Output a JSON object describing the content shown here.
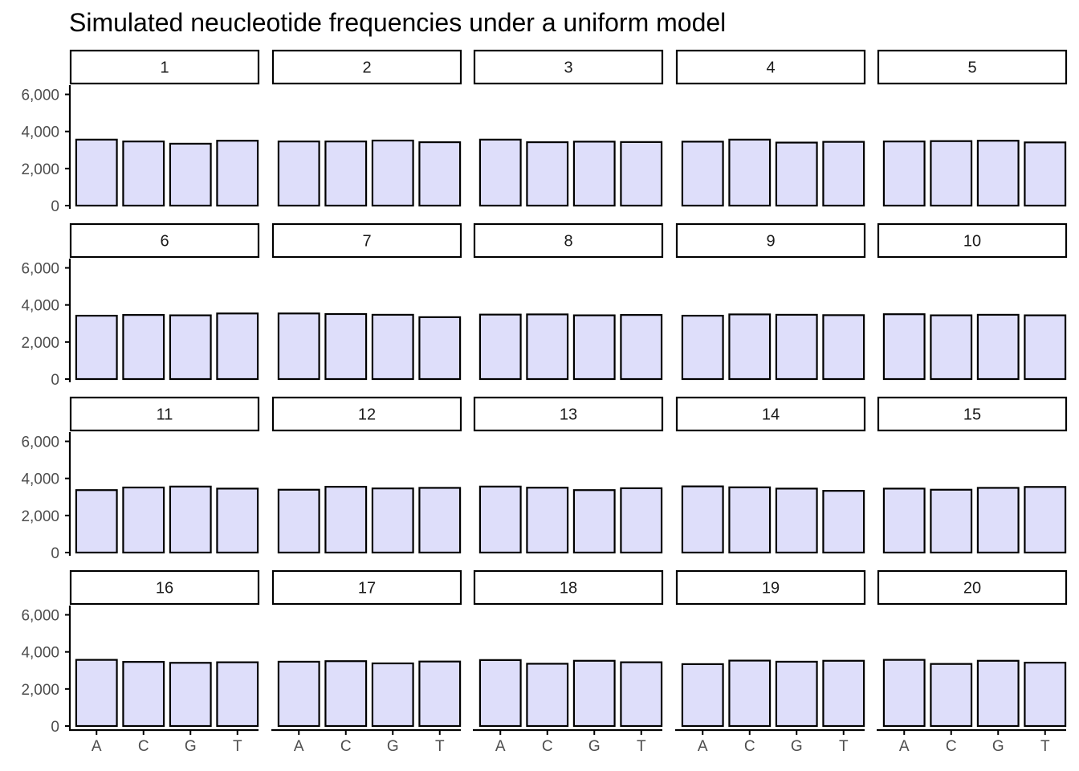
{
  "chart_data": {
    "type": "bar",
    "facet_type": "wrap",
    "facet_ncol": 5,
    "title": "Simulated neucleotide frequencies under a uniform model",
    "xlabel": "",
    "ylabel": "",
    "categories": [
      "A",
      "C",
      "G",
      "T"
    ],
    "ylim": [
      0,
      6500
    ],
    "yticks": [
      0,
      2000,
      4000,
      6000
    ],
    "ytick_labels": [
      "0",
      "2,000",
      "4,000",
      "6,000"
    ],
    "grid": false,
    "legend": "none",
    "colors": {
      "bar_fill": "#dedefa",
      "bar_stroke": "#000000",
      "strip_fill": "#ffffff",
      "strip_stroke": "#000000",
      "axis": "#000000"
    },
    "panels": [
      {
        "label": "1",
        "values": [
          3560,
          3460,
          3340,
          3500
        ]
      },
      {
        "label": "2",
        "values": [
          3460,
          3460,
          3510,
          3420
        ]
      },
      {
        "label": "3",
        "values": [
          3560,
          3420,
          3450,
          3430
        ]
      },
      {
        "label": "4",
        "values": [
          3450,
          3560,
          3400,
          3440
        ]
      },
      {
        "label": "5",
        "values": [
          3460,
          3480,
          3500,
          3410
        ]
      },
      {
        "label": "6",
        "values": [
          3420,
          3460,
          3440,
          3540
        ]
      },
      {
        "label": "7",
        "values": [
          3540,
          3510,
          3470,
          3340
        ]
      },
      {
        "label": "8",
        "values": [
          3480,
          3490,
          3440,
          3460
        ]
      },
      {
        "label": "9",
        "values": [
          3420,
          3490,
          3470,
          3450
        ]
      },
      {
        "label": "10",
        "values": [
          3500,
          3440,
          3470,
          3440
        ]
      },
      {
        "label": "11",
        "values": [
          3370,
          3510,
          3560,
          3450
        ]
      },
      {
        "label": "12",
        "values": [
          3390,
          3550,
          3460,
          3490
        ]
      },
      {
        "label": "13",
        "values": [
          3560,
          3500,
          3370,
          3470
        ]
      },
      {
        "label": "14",
        "values": [
          3570,
          3520,
          3450,
          3330
        ]
      },
      {
        "label": "15",
        "values": [
          3450,
          3390,
          3490,
          3540
        ]
      },
      {
        "label": "16",
        "values": [
          3570,
          3460,
          3410,
          3440
        ]
      },
      {
        "label": "17",
        "values": [
          3470,
          3500,
          3380,
          3480
        ]
      },
      {
        "label": "18",
        "values": [
          3560,
          3360,
          3520,
          3440
        ]
      },
      {
        "label": "19",
        "values": [
          3340,
          3530,
          3470,
          3520
        ]
      },
      {
        "label": "20",
        "values": [
          3570,
          3350,
          3520,
          3420
        ]
      }
    ]
  }
}
